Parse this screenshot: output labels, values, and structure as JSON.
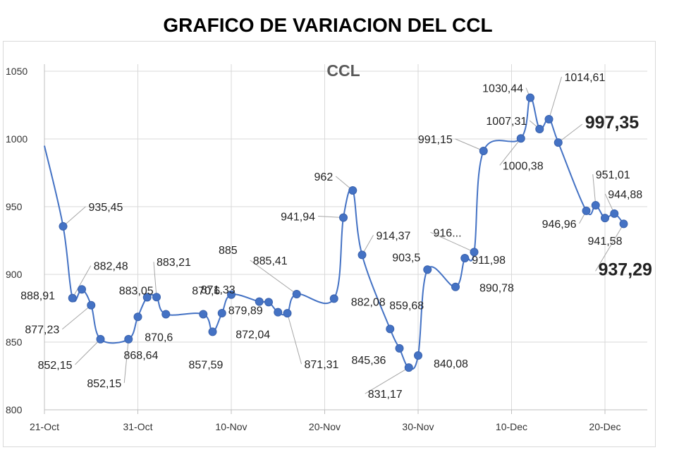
{
  "title": "GRAFICO DE VARIACION DEL CCL",
  "chart_data": {
    "type": "line",
    "title": "CCL",
    "ylim": [
      800,
      1050
    ],
    "yticks": [
      "800",
      "850",
      "900",
      "950",
      "1000",
      "1050"
    ],
    "xticks": [
      "21-Oct",
      "31-Oct",
      "10-Nov",
      "20-Nov",
      "30-Nov",
      "10-Dec",
      "20-Dec"
    ],
    "grid": true,
    "series_color": "#4472c4",
    "x_start_date": "2022-10-21",
    "points": [
      {
        "x": "2022-10-21",
        "y": 995,
        "label": ""
      },
      {
        "x": "2022-10-23",
        "y": 935.45,
        "label": "935,45"
      },
      {
        "x": "2022-10-24",
        "y": 882.48,
        "label": "882,48"
      },
      {
        "x": "2022-10-25",
        "y": 888.91,
        "label": "888,91"
      },
      {
        "x": "2022-10-26",
        "y": 877.23,
        "label": "877,23"
      },
      {
        "x": "2022-10-27",
        "y": 852.15,
        "label": "852,15"
      },
      {
        "x": "2022-10-30",
        "y": 852.15,
        "label": "852,15"
      },
      {
        "x": "2022-10-31",
        "y": 868.64,
        "label": "868,64"
      },
      {
        "x": "2022-11-01",
        "y": 883.05,
        "label": "883,05"
      },
      {
        "x": "2022-11-02",
        "y": 883.21,
        "label": "883,21"
      },
      {
        "x": "2022-11-03",
        "y": 870.6,
        "label": "870,6"
      },
      {
        "x": "2022-11-07",
        "y": 870.6,
        "label": "870,6"
      },
      {
        "x": "2022-11-08",
        "y": 857.59,
        "label": "857,59"
      },
      {
        "x": "2022-11-09",
        "y": 871.33,
        "label": "871,33"
      },
      {
        "x": "2022-11-10",
        "y": 885,
        "label": "885"
      },
      {
        "x": "2022-11-13",
        "y": 879.89,
        "label": "879,89"
      },
      {
        "x": "2022-11-14",
        "y": 879.5,
        "label": ""
      },
      {
        "x": "2022-11-15",
        "y": 872.04,
        "label": "872,04"
      },
      {
        "x": "2022-11-16",
        "y": 871.31,
        "label": "871,31"
      },
      {
        "x": "2022-11-17",
        "y": 885.41,
        "label": "885,41"
      },
      {
        "x": "2022-11-21",
        "y": 882.08,
        "label": "882,08"
      },
      {
        "x": "2022-11-22",
        "y": 941.94,
        "label": "941,94"
      },
      {
        "x": "2022-11-23",
        "y": 962,
        "label": "962"
      },
      {
        "x": "2022-11-24",
        "y": 914.37,
        "label": "914,37"
      },
      {
        "x": "2022-11-27",
        "y": 859.68,
        "label": "859,68"
      },
      {
        "x": "2022-11-28",
        "y": 845.36,
        "label": "845,36"
      },
      {
        "x": "2022-11-29",
        "y": 831.17,
        "label": "831,17"
      },
      {
        "x": "2022-11-30",
        "y": 840.08,
        "label": "840,08"
      },
      {
        "x": "2022-12-01",
        "y": 903.5,
        "label": "903,5"
      },
      {
        "x": "2022-12-04",
        "y": 890.78,
        "label": "890,78"
      },
      {
        "x": "2022-12-05",
        "y": 911.98,
        "label": "911,98"
      },
      {
        "x": "2022-12-06",
        "y": 916.5,
        "label": "916..."
      },
      {
        "x": "2022-12-07",
        "y": 991.15,
        "label": "991,15"
      },
      {
        "x": "2022-12-11",
        "y": 1000.38,
        "label": "1000,38"
      },
      {
        "x": "2022-12-12",
        "y": 1030.44,
        "label": "1030,44"
      },
      {
        "x": "2022-12-13",
        "y": 1007.31,
        "label": "1007,31"
      },
      {
        "x": "2022-12-14",
        "y": 1014.61,
        "label": "1014,61"
      },
      {
        "x": "2022-12-15",
        "y": 997.35,
        "label": "997,35",
        "bold": true
      },
      {
        "x": "2022-12-18",
        "y": 946.96,
        "label": "946,96"
      },
      {
        "x": "2022-12-19",
        "y": 951.01,
        "label": "951,01"
      },
      {
        "x": "2022-12-20",
        "y": 941.58,
        "label": "941,58"
      },
      {
        "x": "2022-12-21",
        "y": 944.88,
        "label": "944,88"
      },
      {
        "x": "2022-12-22",
        "y": 937.29,
        "label": "937,29",
        "bold": true
      }
    ]
  }
}
